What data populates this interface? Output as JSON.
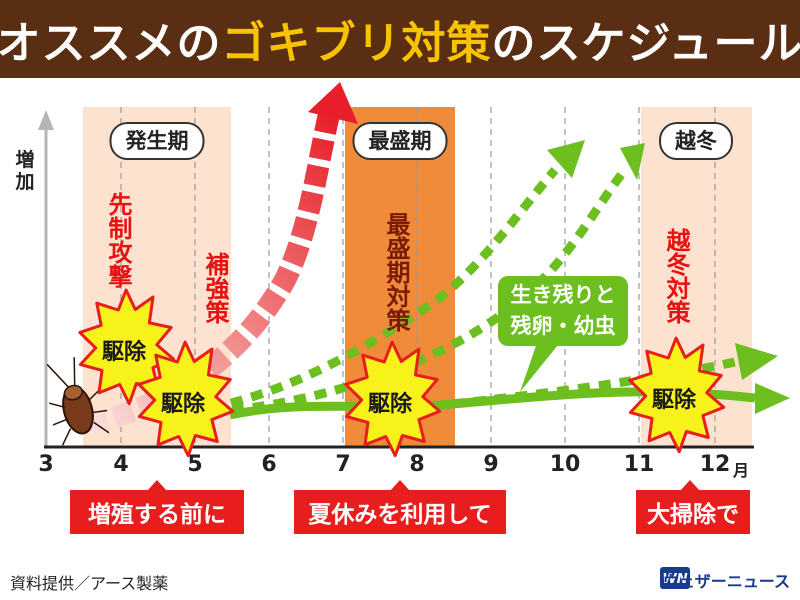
{
  "title": {
    "prefix": "オススメの",
    "highlight": "ゴキブリ対策",
    "suffix": "のスケジュール"
  },
  "y_axis_label": [
    "増",
    "加"
  ],
  "months": [
    "3",
    "4",
    "5",
    "6",
    "7",
    "8",
    "9",
    "10",
    "11",
    "12"
  ],
  "month_unit": "月",
  "periods": [
    {
      "label": "発生期",
      "start_month": 3.5,
      "end_month": 5.5,
      "style": "light"
    },
    {
      "label": "最盛期",
      "start_month": 7.0,
      "end_month": 8.5,
      "style": "dark"
    },
    {
      "label": "越冬",
      "start_month": 11.0,
      "end_month": 12.5,
      "style": "light"
    }
  ],
  "strategy_labels": [
    {
      "text": "先制攻撃",
      "style": "red"
    },
    {
      "text": "補強策",
      "style": "red"
    },
    {
      "text": "最盛期対策",
      "style": "dark"
    },
    {
      "text": "越冬対策",
      "style": "red"
    }
  ],
  "extermination_label": "駆除",
  "callout": [
    "生き残りと",
    "残卵・幼虫"
  ],
  "bottom_boxes": [
    "増殖する前に",
    "夏休みを利用して",
    "大掃除で"
  ],
  "source": "資料提供／アース製薬",
  "logo": {
    "mark": "WN",
    "text": "ウェザーニュース"
  },
  "colors": {
    "title_bg": "#5a2e12",
    "title_highlight": "#f7c200",
    "period_light": "#fde3cf",
    "period_dark": "#f08b3a",
    "red_arrow": "#e53030",
    "green_arrow": "#6cbf1f",
    "burst": "#f7f21a",
    "bottom_box": "#e81e1e"
  }
}
